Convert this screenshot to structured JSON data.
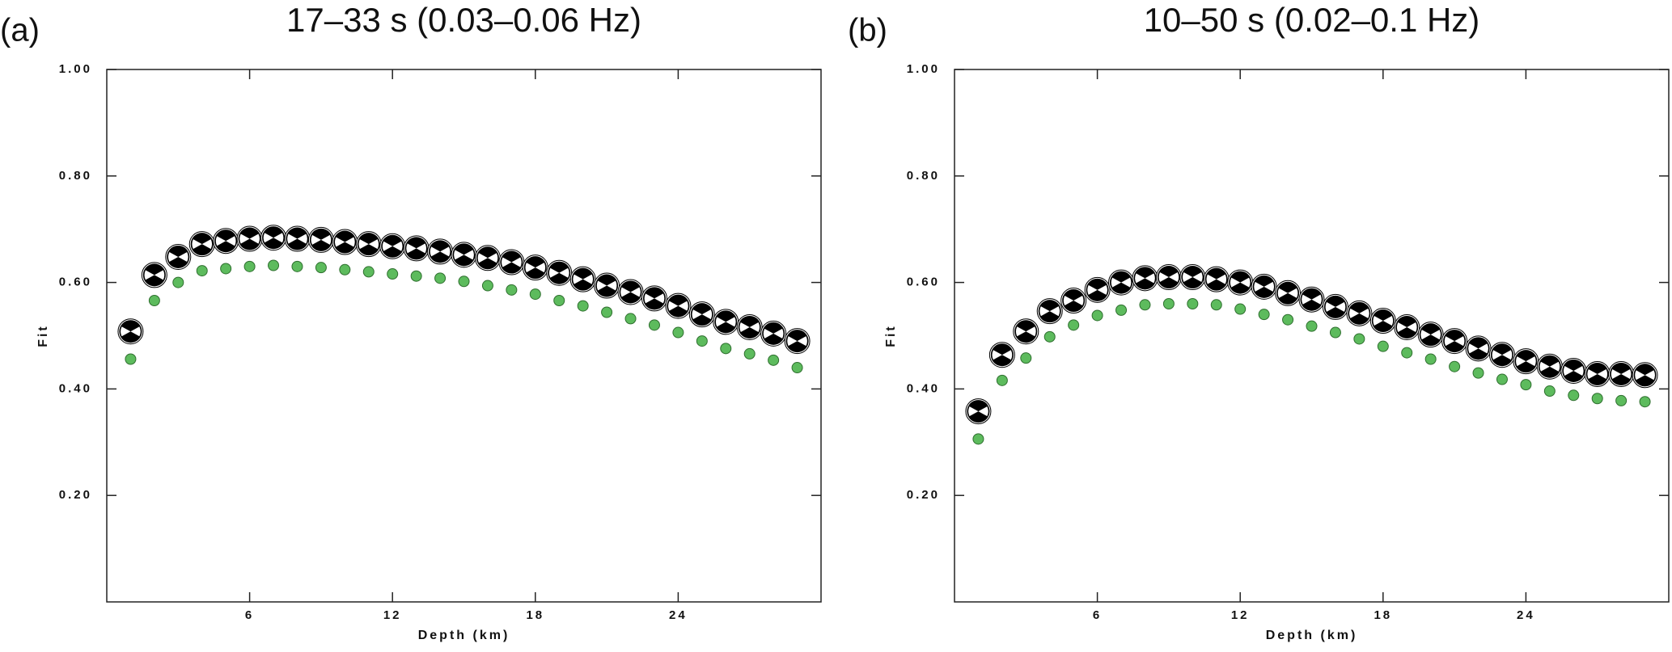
{
  "chart_data": [
    {
      "type": "scatter",
      "panel_label": "(a)",
      "title": "17–33 s (0.03–0.06 Hz)",
      "xlabel": "Depth (km)",
      "ylabel": "Fit",
      "xlim": [
        0,
        30
      ],
      "ylim": [
        0,
        1
      ],
      "xticks": [
        6,
        12,
        18,
        24
      ],
      "yticks": [
        {
          "value": 0.2,
          "label": "0.20"
        },
        {
          "value": 0.4,
          "label": "0.40"
        },
        {
          "value": 0.6,
          "label": "0.60"
        },
        {
          "value": 0.8,
          "label": "0.80"
        },
        {
          "value": 1,
          "label": "1.00"
        }
      ],
      "x": [
        1,
        2,
        3,
        4,
        5,
        6,
        7,
        8,
        9,
        10,
        11,
        12,
        13,
        14,
        15,
        16,
        17,
        18,
        19,
        20,
        21,
        22,
        23,
        24,
        25,
        26,
        27,
        28,
        29
      ],
      "series": [
        {
          "color": "#000000",
          "marker": "beachball",
          "values": [
            0.508,
            0.614,
            0.648,
            0.672,
            0.678,
            0.682,
            0.684,
            0.682,
            0.68,
            0.676,
            0.672,
            0.668,
            0.664,
            0.658,
            0.652,
            0.646,
            0.638,
            0.628,
            0.618,
            0.606,
            0.594,
            0.582,
            0.57,
            0.556,
            0.54,
            0.526,
            0.516,
            0.504,
            0.49
          ]
        },
        {
          "color": "#5dbb5d",
          "marker": "dot",
          "values": [
            0.456,
            0.566,
            0.6,
            0.622,
            0.626,
            0.63,
            0.632,
            0.63,
            0.628,
            0.624,
            0.62,
            0.616,
            0.612,
            0.608,
            0.602,
            0.594,
            0.586,
            0.578,
            0.566,
            0.556,
            0.544,
            0.532,
            0.52,
            0.506,
            0.49,
            0.476,
            0.466,
            0.454,
            0.44
          ]
        }
      ]
    },
    {
      "type": "scatter",
      "panel_label": "(b)",
      "title": "10–50 s (0.02–0.1 Hz)",
      "xlabel": "Depth (km)",
      "ylabel": "Fit",
      "xlim": [
        0,
        30
      ],
      "ylim": [
        0,
        1
      ],
      "xticks": [
        6,
        12,
        18,
        24
      ],
      "yticks": [
        {
          "value": 0.2,
          "label": "0.20"
        },
        {
          "value": 0.4,
          "label": "0.40"
        },
        {
          "value": 0.6,
          "label": "0.60"
        },
        {
          "value": 0.8,
          "label": "0.80"
        },
        {
          "value": 1,
          "label": "1.00"
        }
      ],
      "x": [
        1,
        2,
        3,
        4,
        5,
        6,
        7,
        8,
        9,
        10,
        11,
        12,
        13,
        14,
        15,
        16,
        17,
        18,
        19,
        20,
        21,
        22,
        23,
        24,
        25,
        26,
        27,
        28,
        29
      ],
      "series": [
        {
          "color": "#000000",
          "marker": "beachball",
          "values": [
            0.358,
            0.464,
            0.508,
            0.546,
            0.566,
            0.586,
            0.6,
            0.608,
            0.61,
            0.61,
            0.606,
            0.6,
            0.592,
            0.58,
            0.568,
            0.554,
            0.542,
            0.528,
            0.516,
            0.502,
            0.49,
            0.476,
            0.464,
            0.452,
            0.442,
            0.434,
            0.428,
            0.428,
            0.426
          ]
        },
        {
          "color": "#5dbb5d",
          "marker": "dot",
          "values": [
            0.306,
            0.416,
            0.458,
            0.498,
            0.52,
            0.538,
            0.548,
            0.558,
            0.56,
            0.56,
            0.558,
            0.55,
            0.54,
            0.53,
            0.518,
            0.506,
            0.494,
            0.48,
            0.468,
            0.456,
            0.442,
            0.43,
            0.418,
            0.408,
            0.396,
            0.388,
            0.382,
            0.378,
            0.376
          ]
        }
      ]
    }
  ]
}
